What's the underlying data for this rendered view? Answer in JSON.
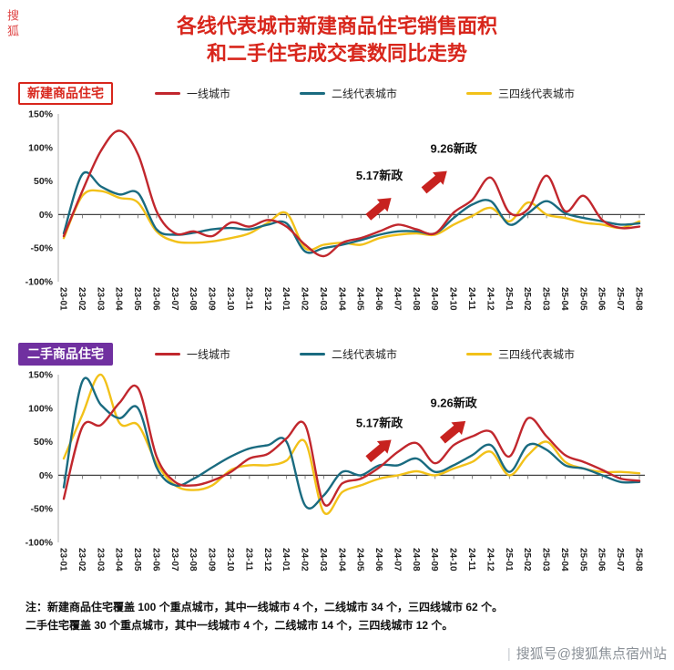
{
  "page": {
    "title_line1": "各线代表城市新建商品住宅销售面积",
    "title_line2": "和二手住宅成交套数同比走势",
    "left_watermark": "搜狐",
    "bottom_watermark": "搜狐号@搜狐焦点宿州站",
    "bottom_watermark_divider": "|",
    "notes_line1": "注：新建商品住宅覆盖 100 个重点城市，其中一线城市 4 个，二线城市 34 个，三四线城市 62 个。",
    "notes_line2": "二手住宅覆盖 30 个重点城市，其中一线城市 4 个，二线城市 14 个，三四线城市 12 个。"
  },
  "colors": {
    "title_red": "#d8261c",
    "tier1_red": "#c1272d",
    "tier2_teal": "#1a6b80",
    "tier34_yellow": "#f2c119",
    "badge2_purple": "#7030a0",
    "annotation_arrow": "#c7221f",
    "axis_gray": "#b0b0b0",
    "zero_line": "#444444",
    "watermark_gray": "#8a9097"
  },
  "chart_data": [
    {
      "type": "line",
      "badge": "新建商品住宅",
      "badge_text_color": "#d8261c",
      "badge_border": "#d8261c",
      "badge_bg": "#ffffff",
      "ylim": [
        -100,
        150
      ],
      "yticks": [
        150,
        100,
        50,
        0,
        -50,
        -100
      ],
      "ytick_suffix": "%",
      "grid": false,
      "legend_position": "top",
      "categories": [
        "23-01",
        "23-02",
        "23-03",
        "23-04",
        "23-05",
        "23-06",
        "23-07",
        "23-08",
        "23-09",
        "23-10",
        "23-11",
        "23-12",
        "24-01",
        "24-02",
        "24-03",
        "24-04",
        "24-05",
        "24-06",
        "24-07",
        "24-08",
        "24-09",
        "24-10",
        "24-11",
        "24-12",
        "25-01",
        "25-02",
        "25-03",
        "25-04",
        "25-05",
        "25-06",
        "25-07",
        "25-08"
      ],
      "series": [
        {
          "name": "一线城市",
          "color": "#c1272d",
          "values": [
            -32,
            35,
            95,
            125,
            90,
            5,
            -28,
            -25,
            -32,
            -12,
            -18,
            -8,
            -18,
            -45,
            -62,
            -42,
            -35,
            -25,
            -15,
            -22,
            -28,
            3,
            22,
            55,
            3,
            8,
            58,
            5,
            28,
            -8,
            -20,
            -18
          ]
        },
        {
          "name": "二线代表城市",
          "color": "#1a6b80",
          "values": [
            -28,
            60,
            42,
            30,
            32,
            -22,
            -30,
            -27,
            -22,
            -20,
            -22,
            -15,
            -13,
            -55,
            -50,
            -45,
            -38,
            -30,
            -25,
            -25,
            -28,
            -5,
            15,
            20,
            -15,
            2,
            20,
            2,
            -5,
            -10,
            -15,
            -13
          ]
        },
        {
          "name": "三四线代表城市",
          "color": "#f2c119",
          "values": [
            -35,
            28,
            35,
            25,
            18,
            -25,
            -40,
            -42,
            -40,
            -35,
            -28,
            -12,
            2,
            -50,
            -45,
            -42,
            -45,
            -35,
            -30,
            -28,
            -30,
            -15,
            -2,
            10,
            -10,
            18,
            0,
            -5,
            -12,
            -15,
            -20,
            -10
          ]
        }
      ],
      "annotations": [
        {
          "label": "5.17新政",
          "cat": "24-06",
          "label_value": 52,
          "arrow_cat": "24-06",
          "arrow_value": 10,
          "arrow_angle": -40
        },
        {
          "label": "9.26新政",
          "cat": "24-10",
          "label_value": 92,
          "arrow_cat": "24-09",
          "arrow_value": 50,
          "arrow_angle": -40
        }
      ]
    },
    {
      "type": "line",
      "badge": "二手商品住宅",
      "badge_text_color": "#ffffff",
      "badge_border": "#7030a0",
      "badge_bg": "#7030a0",
      "ylim": [
        -100,
        150
      ],
      "yticks": [
        150,
        100,
        50,
        0,
        -50,
        -100
      ],
      "ytick_suffix": "%",
      "grid": false,
      "legend_position": "top",
      "categories": [
        "23-01",
        "23-02",
        "23-03",
        "23-04",
        "23-05",
        "23-06",
        "23-07",
        "23-08",
        "23-09",
        "23-10",
        "23-11",
        "23-12",
        "24-01",
        "24-02",
        "24-03",
        "24-04",
        "24-05",
        "24-06",
        "24-07",
        "24-08",
        "24-09",
        "24-10",
        "24-11",
        "24-12",
        "25-01",
        "25-02",
        "25-03",
        "25-04",
        "25-05",
        "25-06",
        "25-07",
        "25-08"
      ],
      "series": [
        {
          "name": "一线城市",
          "color": "#c1272d",
          "values": [
            -35,
            72,
            75,
            108,
            130,
            28,
            -10,
            -15,
            -8,
            5,
            25,
            32,
            55,
            75,
            -42,
            -12,
            -5,
            12,
            35,
            48,
            18,
            45,
            58,
            65,
            28,
            85,
            58,
            30,
            20,
            8,
            -5,
            -8
          ]
        },
        {
          "name": "二线代表城市",
          "color": "#1a6b80",
          "values": [
            -18,
            140,
            105,
            85,
            100,
            12,
            -15,
            -5,
            12,
            28,
            40,
            45,
            50,
            -45,
            -30,
            5,
            0,
            15,
            15,
            25,
            5,
            15,
            30,
            45,
            5,
            45,
            38,
            15,
            10,
            0,
            -10,
            -10
          ]
        },
        {
          "name": "三四线代表城市",
          "color": "#f2c119",
          "values": [
            25,
            90,
            150,
            78,
            75,
            18,
            -15,
            -22,
            -15,
            8,
            15,
            15,
            22,
            50,
            -55,
            -25,
            -15,
            -5,
            0,
            6,
            0,
            10,
            20,
            35,
            0,
            30,
            50,
            20,
            10,
            5,
            5,
            3
          ]
        }
      ],
      "annotations": [
        {
          "label": "5.17新政",
          "cat": "24-06",
          "label_value": 72,
          "arrow_cat": "24-06",
          "arrow_value": 38,
          "arrow_angle": -40
        },
        {
          "label": "9.26新政",
          "cat": "24-10",
          "label_value": 102,
          "arrow_cat": "24-10",
          "arrow_value": 66,
          "arrow_angle": -40
        }
      ]
    }
  ]
}
